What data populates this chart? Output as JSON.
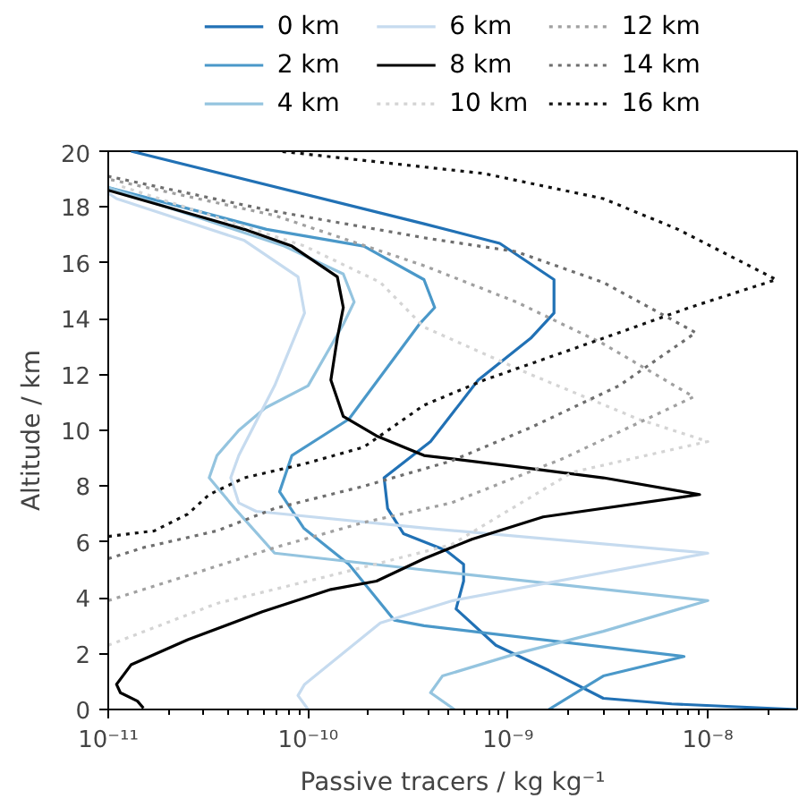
{
  "chart_data": {
    "type": "line",
    "xlabel": "Passive tracers / kg kg⁻¹",
    "ylabel": "Altitude / km",
    "log": "x",
    "xlim": [
      1e-11,
      2.8e-08
    ],
    "xticks": [
      {
        "value": 1e-11,
        "label": "10⁻¹¹"
      },
      {
        "value": 1e-10,
        "label": "10⁻¹⁰"
      },
      {
        "value": 1e-09,
        "label": "10⁻⁹"
      },
      {
        "value": 1e-08,
        "label": "10⁻⁸"
      }
    ],
    "ylim": [
      0,
      20
    ],
    "yticks": [
      0,
      2,
      4,
      6,
      8,
      10,
      12,
      14,
      16,
      18,
      20
    ],
    "grid": false,
    "legend": "top",
    "series": [
      {
        "name": "0 km",
        "color": "#2171b5",
        "line_style": "solid",
        "x": [
          2.8e-08,
          6.6e-09,
          3e-09,
          1.6e-09,
          8.7e-10,
          5.5e-10,
          6e-10,
          6e-10,
          4.9e-10,
          3e-10,
          2.5e-10,
          2.4e-10,
          4.1e-10,
          7.1e-10,
          1.3e-09,
          1.7e-09,
          1.7e-09,
          9.1e-10,
          3.8e-10,
          1.3e-11
        ],
        "values": [
          0,
          0.2,
          0.4,
          1.4,
          2.3,
          3.6,
          4.6,
          5.2,
          5.7,
          6.3,
          7.2,
          8.3,
          9.6,
          11.8,
          13.3,
          14.2,
          15.4,
          16.7,
          17.4,
          20
        ]
      },
      {
        "name": "2 km",
        "color": "#4a98c9",
        "line_style": "solid",
        "x": [
          1.6e-09,
          3e-09,
          7.6e-09,
          3.8e-10,
          2.7e-10,
          1.6e-10,
          9.5e-11,
          7.2e-11,
          8.3e-11,
          1.6e-10,
          3.6e-10,
          4.3e-10,
          3.8e-10,
          1.9e-10,
          6.2e-11,
          1e-11
        ],
        "values": [
          0,
          1.2,
          1.9,
          3.0,
          3.2,
          5.2,
          6.5,
          7.8,
          9.1,
          10.4,
          13.8,
          14.4,
          15.4,
          16.6,
          17.2,
          18.7
        ]
      },
      {
        "name": "4 km",
        "color": "#94c4df",
        "line_style": "solid",
        "x": [
          5.4e-10,
          4.1e-10,
          4.7e-10,
          1.1e-09,
          3e-09,
          1e-08,
          3.8e-10,
          6.8e-11,
          4.3e-11,
          3.2e-11,
          3.5e-11,
          4.5e-11,
          6.1e-11,
          1e-10,
          1.5e-10,
          1.7e-10,
          1.5e-10,
          7.6e-11,
          1e-11
        ],
        "values": [
          0,
          0.6,
          1.2,
          2.0,
          2.8,
          3.9,
          5.0,
          5.6,
          7.2,
          8.3,
          9.1,
          10.0,
          10.8,
          11.6,
          13.8,
          14.6,
          15.6,
          16.6,
          18.7
        ]
      },
      {
        "name": "6 km",
        "color": "#c6dbef",
        "line_style": "solid",
        "x": [
          1e-10,
          8.9e-11,
          9.6e-11,
          2.3e-10,
          5.3e-10,
          1e-08,
          3.8e-10,
          5.5e-11,
          4.5e-11,
          4.1e-11,
          4.5e-11,
          6.8e-11,
          9.6e-11,
          8.9e-11,
          4.8e-11,
          1.1e-11,
          1e-11
        ],
        "values": [
          0,
          0.5,
          0.9,
          3.1,
          3.9,
          5.6,
          6.5,
          7.1,
          7.4,
          8.3,
          9.1,
          11.6,
          14.2,
          15.5,
          16.8,
          18.3,
          18.5
        ]
      },
      {
        "name": "8 km",
        "color": "#000000",
        "line_style": "solid",
        "x": [
          1.5e-11,
          1.4e-11,
          1.15e-11,
          1.1e-11,
          1.3e-11,
          2.5e-11,
          5.9e-11,
          1.3e-10,
          2.2e-10,
          3.8e-10,
          6.6e-10,
          1.5e-09,
          9.1e-09,
          3e-09,
          1.1e-09,
          3.8e-10,
          2.2e-10,
          1.5e-10,
          1.3e-10,
          1.4e-10,
          1.5e-10,
          1.4e-10,
          8.3e-11,
          4.8e-11,
          1e-11
        ],
        "values": [
          0.05,
          0.3,
          0.6,
          0.9,
          1.6,
          2.5,
          3.5,
          4.3,
          4.6,
          5.4,
          6.1,
          6.9,
          7.7,
          8.3,
          8.7,
          9.1,
          9.8,
          10.5,
          11.8,
          13.3,
          14.4,
          15.5,
          16.6,
          17.2,
          18.6
        ]
      },
      {
        "name": "10 km",
        "color": "#d4d4d4",
        "line_style": "dotted",
        "x": [
          1e-11,
          3.5e-11,
          1.3e-10,
          5.2e-10,
          2.1e-09,
          1e-08,
          4.5e-09,
          1.3e-09,
          3.8e-10,
          2.3e-10,
          9.6e-11,
          1.1e-11
        ],
        "values": [
          2.3,
          3.8,
          4.8,
          5.9,
          8.5,
          9.6,
          10.4,
          12.0,
          13.7,
          15.3,
          16.6,
          18.8
        ]
      },
      {
        "name": "12 km",
        "color": "#a0a0a0",
        "line_style": "dotted",
        "x": [
          1e-11,
          2.5e-11,
          6.8e-11,
          1.9e-10,
          5.2e-10,
          1.9e-09,
          8.5e-09,
          3e-09,
          1.1e-09,
          3.8e-10,
          6.8e-11,
          1e-11
        ],
        "values": [
          3.9,
          4.8,
          5.8,
          6.7,
          7.4,
          9.0,
          11.2,
          13.1,
          14.6,
          15.9,
          17.7,
          19.0
        ]
      },
      {
        "name": "14 km",
        "color": "#6e6e6e",
        "line_style": "dotted",
        "x": [
          1e-11,
          1.5e-11,
          3.5e-11,
          6.8e-11,
          1.9e-10,
          5.2e-10,
          1.3e-09,
          3.6e-09,
          8.7e-09,
          3e-09,
          1.1e-09,
          3.8e-10,
          6.2e-11,
          1e-11
        ],
        "values": [
          5.4,
          5.8,
          6.4,
          7.2,
          8.0,
          8.9,
          10.1,
          11.6,
          13.5,
          15.3,
          16.4,
          16.9,
          17.9,
          19.1
        ]
      },
      {
        "name": "16 km",
        "color": "#111111",
        "line_style": "dotted",
        "x": [
          1e-11,
          1.7e-11,
          2.5e-11,
          3.2e-11,
          4.8e-11,
          9.6e-11,
          1.9e-10,
          3.8e-10,
          7.6e-10,
          3e-09,
          8.1e-09,
          2.2e-08,
          7.1e-09,
          3e-09,
          7.6e-10,
          7.2e-11
        ],
        "values": [
          6.2,
          6.4,
          7.0,
          7.7,
          8.3,
          8.8,
          9.4,
          10.9,
          11.8,
          13.3,
          14.4,
          15.4,
          17.2,
          18.3,
          19.2,
          20.0
        ]
      }
    ]
  }
}
